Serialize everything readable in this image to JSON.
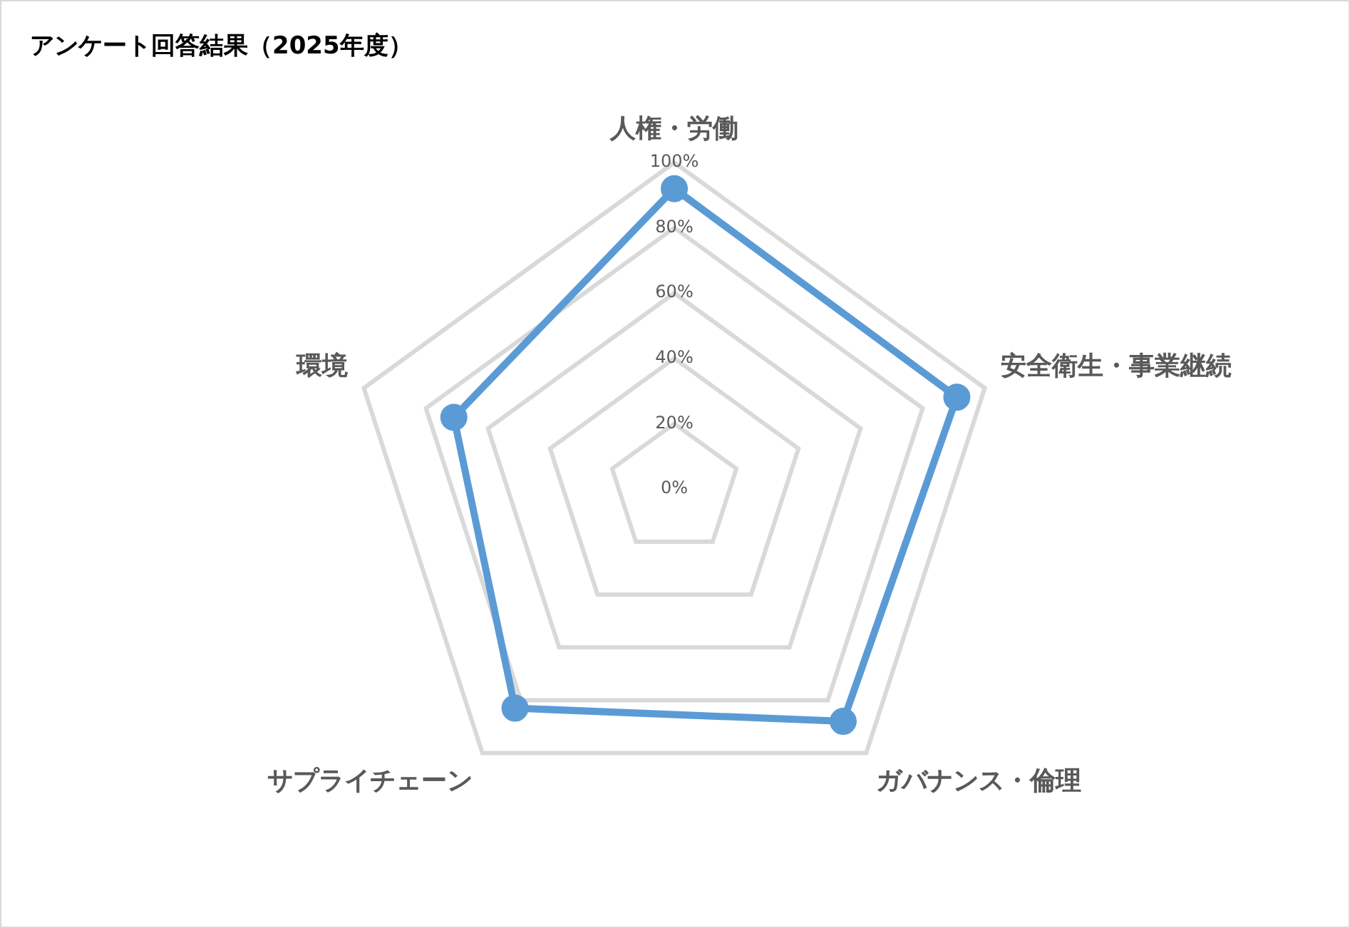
{
  "chart_data": {
    "type": "radar",
    "title": "アンケート回答結果（2025年度）",
    "categories": [
      "人権・労働",
      "安全衛生・事業継続",
      "ガバナンス・倫理",
      "サプライチェーン",
      "環境"
    ],
    "series": [
      {
        "color": "#5b9bd5",
        "values": [
          92,
          91,
          88,
          83,
          71
        ]
      }
    ],
    "ylim": [
      0,
      100
    ],
    "yticks": [
      {
        "value": 0,
        "label": "0%"
      },
      {
        "value": 20,
        "label": "20%"
      },
      {
        "value": 40,
        "label": "40%"
      },
      {
        "value": 60,
        "label": "60%"
      },
      {
        "value": 80,
        "label": "80%"
      },
      {
        "value": 100,
        "label": "100%"
      }
    ],
    "grid": true,
    "marker": "circle"
  }
}
